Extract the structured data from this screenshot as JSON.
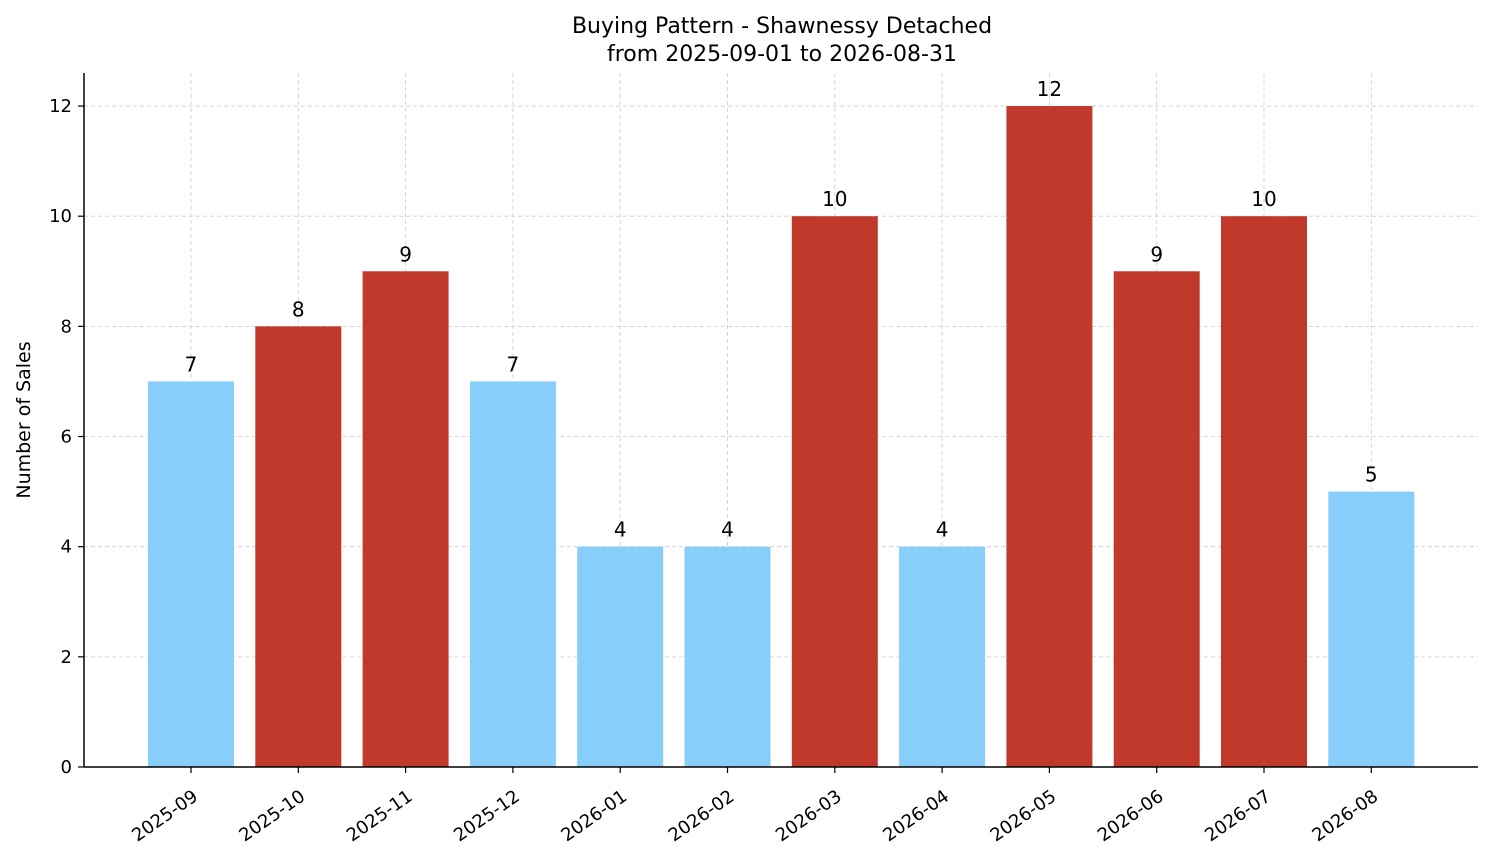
{
  "chart_data": {
    "type": "bar",
    "title_lines": [
      "Buying Pattern - Shawnessy Detached",
      "from 2025-09-01 to 2026-08-31"
    ],
    "xlabel": "",
    "ylabel": "Number of Sales",
    "categories": [
      "2025-09",
      "2025-10",
      "2025-11",
      "2025-12",
      "2026-01",
      "2026-02",
      "2026-03",
      "2026-04",
      "2026-05",
      "2026-06",
      "2026-07",
      "2026-08"
    ],
    "values": [
      7,
      8,
      9,
      7,
      4,
      4,
      10,
      4,
      12,
      9,
      10,
      5
    ],
    "value_labels": [
      "7",
      "8",
      "9",
      "7",
      "4",
      "4",
      "10",
      "4",
      "12",
      "9",
      "10",
      "5"
    ],
    "bar_colors": [
      "#87CEFA",
      "#C0392B",
      "#C0392B",
      "#87CEFA",
      "#87CEFA",
      "#87CEFA",
      "#C0392B",
      "#87CEFA",
      "#C0392B",
      "#C0392B",
      "#C0392B",
      "#87CEFA"
    ],
    "ylim": [
      0,
      12.6
    ],
    "yticks": [
      "0",
      "2",
      "4",
      "6",
      "8",
      "10",
      "12"
    ],
    "grid": true,
    "legend": "none"
  }
}
